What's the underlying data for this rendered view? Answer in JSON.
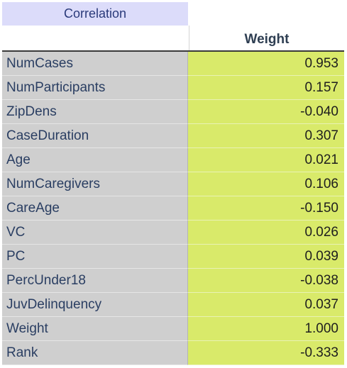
{
  "sheet": {
    "tab_label": "Correlation",
    "column_header": "Weight",
    "rows": [
      {
        "label": "NumCases",
        "value": "0.953"
      },
      {
        "label": "NumParticipants",
        "value": "0.157"
      },
      {
        "label": "ZipDens",
        "value": "-0.040"
      },
      {
        "label": "CaseDuration",
        "value": "0.307"
      },
      {
        "label": "Age",
        "value": "0.021"
      },
      {
        "label": "NumCaregivers",
        "value": "0.106"
      },
      {
        "label": "CareAge",
        "value": "-0.150"
      },
      {
        "label": "VC",
        "value": "0.026"
      },
      {
        "label": "PC",
        "value": "0.039"
      },
      {
        "label": "PercUnder18",
        "value": "-0.038"
      },
      {
        "label": "JuvDelinquency",
        "value": "0.037"
      },
      {
        "label": "Weight",
        "value": "1.000"
      },
      {
        "label": "Rank",
        "value": "-0.333"
      }
    ]
  },
  "colors": {
    "tab_background": "#dcdcfa",
    "label_background": "#cfcfcf",
    "value_background": "#d9ea6a"
  }
}
